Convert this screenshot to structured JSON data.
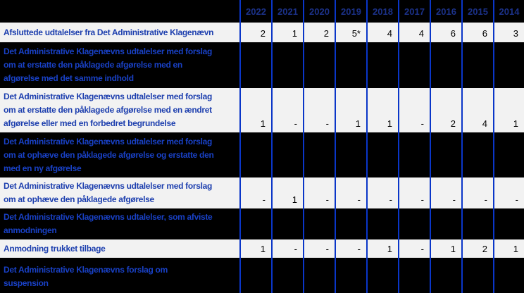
{
  "table": {
    "description": "Statistics table of opinions from Det Administrative Klagenaevn by year",
    "header": {
      "label_column": "",
      "years": [
        "2022",
        "2021",
        "2020",
        "2019",
        "2018",
        "2017",
        "2016",
        "2015",
        "2014"
      ]
    },
    "rows": [
      {
        "label": "Afsluttede udtalelser fra Det Administrative Klagenævn",
        "theme": "light",
        "values": [
          "2",
          "1",
          "2",
          "5*",
          "4",
          "4",
          "6",
          "6",
          "3"
        ]
      },
      {
        "label": "Det Administrative Klagenævns udtalelser med forslag\nom at erstatte den påklagede afgørelse med en\nafgørelse med det samme indhold",
        "theme": "dark",
        "values": [
          "",
          "",
          "",
          "",
          "",
          "",
          "",
          "",
          ""
        ]
      },
      {
        "label": "Det Administrative Klagenævns udtalelser med forslag\nom at erstatte den påklagede afgørelse med en ændret\nafgørelse eller med en forbedret begrundelse",
        "theme": "light",
        "values": [
          "1",
          "-",
          "-",
          "1",
          "1",
          "-",
          "2",
          "4",
          "1"
        ]
      },
      {
        "label": "Det Administrative Klagenævns udtalelser med forslag\nom at ophæve den påklagede afgørelse og erstatte den\nmed en ny afgørelse",
        "theme": "dark",
        "values": [
          "",
          "",
          "",
          "",
          "",
          "",
          "",
          "",
          ""
        ]
      },
      {
        "label": "Det Administrative Klagenævns udtalelser med forslag\nom at ophæve den påklagede afgørelse",
        "theme": "light",
        "values": [
          "-",
          "1",
          "-",
          "-",
          "-",
          "-",
          "-",
          "-",
          "-"
        ]
      },
      {
        "label": "Det Administrative Klagenævns udtalelser, som afviste\nanmodningen",
        "theme": "dark",
        "values": [
          "",
          "",
          "",
          "",
          "",
          "",
          "",
          "",
          ""
        ]
      },
      {
        "label": "Anmodning trukket tilbage",
        "theme": "light",
        "values": [
          "1",
          "-",
          "-",
          "-",
          "1",
          "-",
          "1",
          "2",
          "1"
        ]
      },
      {
        "label": "Det Administrative Klagenævns forslag om\nsuspension",
        "theme": "dark",
        "values": [
          "",
          "",
          "",
          "",
          "",
          "",
          "",
          "",
          ""
        ]
      }
    ],
    "colors": {
      "header_background": "#000000",
      "dark_row_background": "#000000",
      "light_row_background": "#f2f2f2",
      "column_border": "#0a36c8",
      "year_text": "#1b3188",
      "light_row_label_text": "#1c3eae",
      "dark_row_label_text": "#1941c6",
      "value_text": "#000000"
    }
  }
}
